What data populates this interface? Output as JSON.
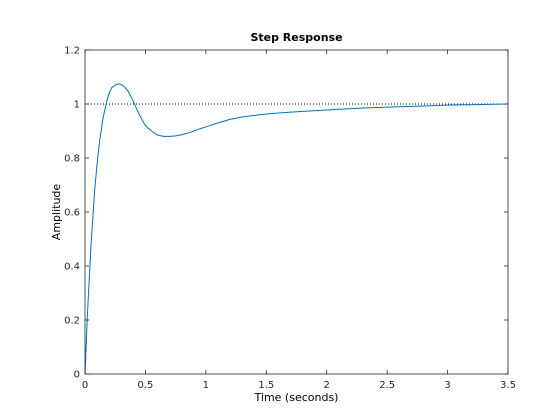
{
  "chart_data": {
    "type": "line",
    "title": "Step Response",
    "xlabel": "Time (seconds)",
    "ylabel": "Amplitude",
    "xlim": [
      0,
      3.5
    ],
    "ylim": [
      0,
      1.2
    ],
    "xticks": [
      0,
      0.5,
      1,
      1.5,
      2,
      2.5,
      3,
      3.5
    ],
    "xtick_labels": [
      "0",
      "0.5",
      "1",
      "1.5",
      "2",
      "2.5",
      "3",
      "3.5"
    ],
    "yticks": [
      0,
      0.2,
      0.4,
      0.6,
      0.8,
      1,
      1.2
    ],
    "ytick_labels": [
      "0",
      "0.2",
      "0.4",
      "0.6",
      "0.8",
      "1",
      "1.2"
    ],
    "grid": false,
    "reference_line": {
      "y": 1,
      "style": "dotted",
      "color": "#000000"
    },
    "series": [
      {
        "color": "#0072bd",
        "x": [
          0,
          0.02,
          0.05,
          0.08,
          0.1,
          0.12,
          0.15,
          0.18,
          0.2,
          0.22,
          0.25,
          0.28,
          0.3,
          0.33,
          0.36,
          0.4,
          0.45,
          0.5,
          0.55,
          0.6,
          0.65,
          0.7,
          0.75,
          0.8,
          0.85,
          0.9,
          0.95,
          1.0,
          1.1,
          1.2,
          1.3,
          1.4,
          1.5,
          1.7,
          2.0,
          2.3,
          2.6,
          3.0,
          3.5
        ],
        "y": [
          0,
          0.22,
          0.48,
          0.68,
          0.78,
          0.86,
          0.95,
          1.01,
          1.04,
          1.06,
          1.07,
          1.075,
          1.072,
          1.062,
          1.045,
          1.01,
          0.96,
          0.92,
          0.9,
          0.885,
          0.88,
          0.88,
          0.882,
          0.886,
          0.892,
          0.9,
          0.908,
          0.915,
          0.93,
          0.943,
          0.952,
          0.958,
          0.963,
          0.97,
          0.978,
          0.985,
          0.99,
          0.996,
          1.0
        ]
      }
    ]
  }
}
